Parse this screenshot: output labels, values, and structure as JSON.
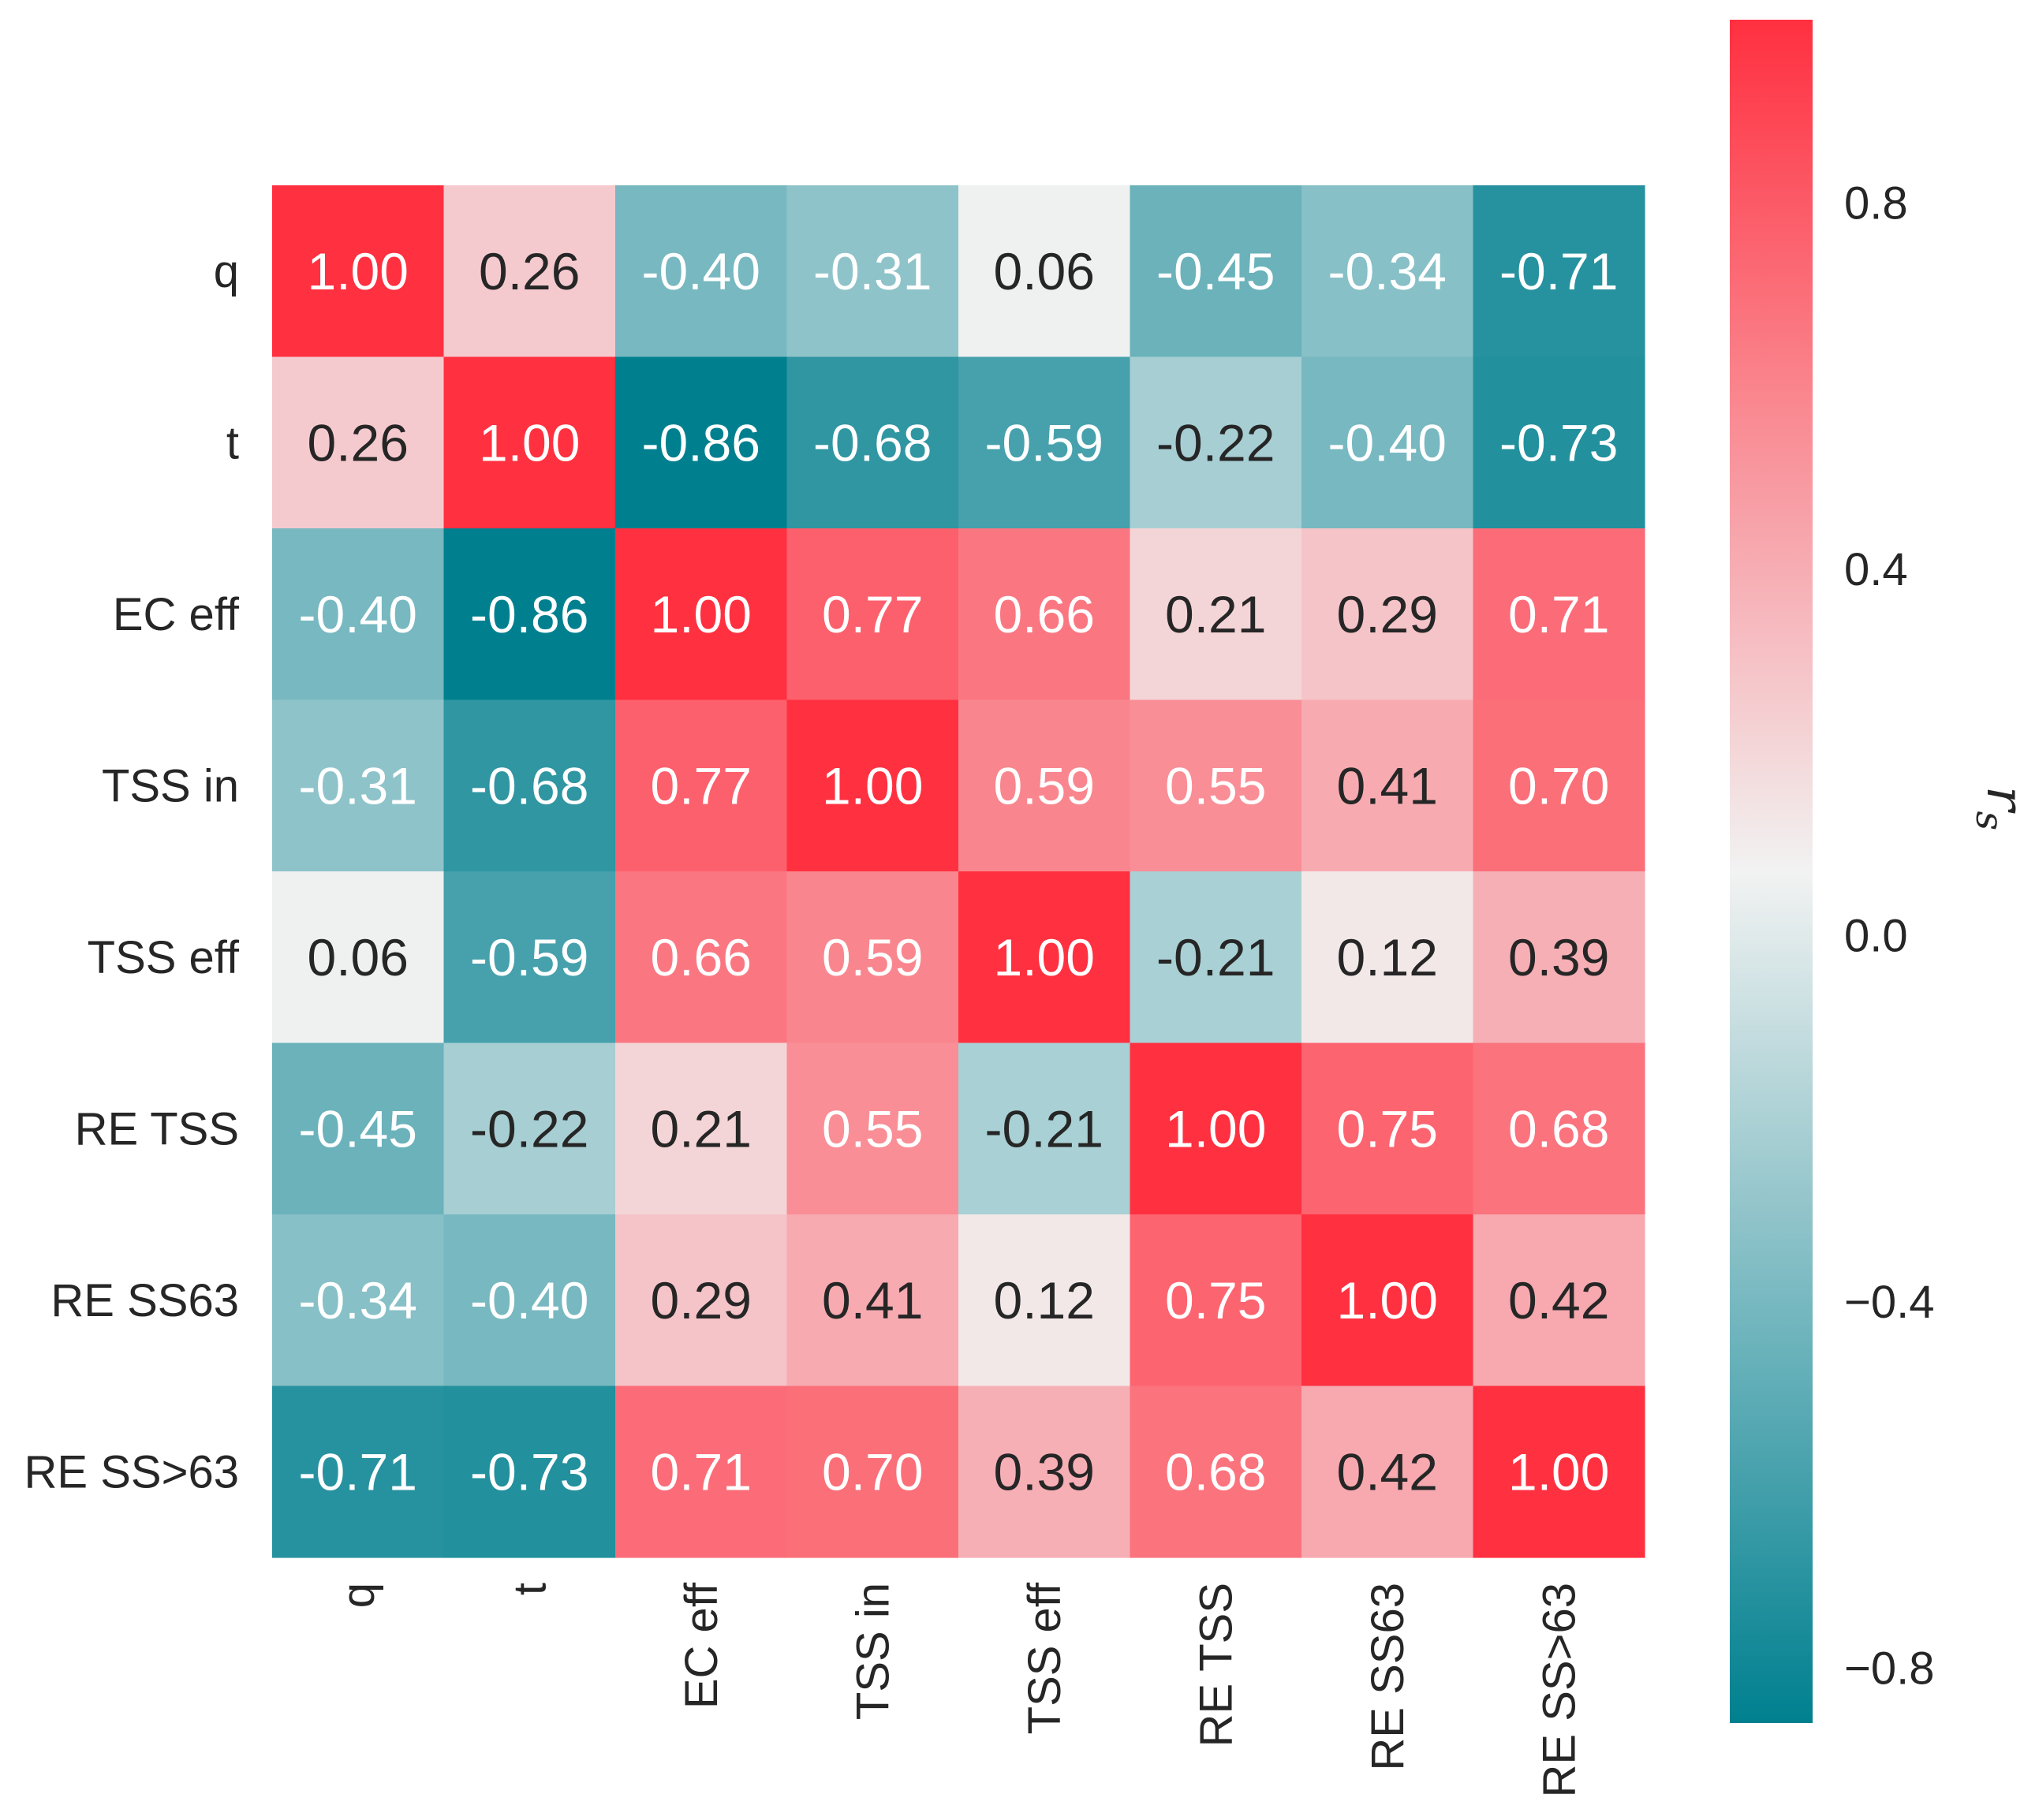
{
  "chart_data": {
    "type": "heatmap",
    "title": "",
    "row_labels": [
      "q",
      "t",
      "EC eff",
      "TSS in",
      "TSS eff",
      "RE TSS",
      "RE SS63",
      "RE SS>63"
    ],
    "col_labels": [
      "q",
      "t",
      "EC eff",
      "TSS in",
      "TSS eff",
      "RE TSS",
      "RE SS63",
      "RE SS>63"
    ],
    "values": [
      [
        1.0,
        0.26,
        -0.4,
        -0.31,
        0.06,
        -0.45,
        -0.34,
        -0.71
      ],
      [
        0.26,
        1.0,
        -0.86,
        -0.68,
        -0.59,
        -0.22,
        -0.4,
        -0.73
      ],
      [
        -0.4,
        -0.86,
        1.0,
        0.77,
        0.66,
        0.21,
        0.29,
        0.71
      ],
      [
        -0.31,
        -0.68,
        0.77,
        1.0,
        0.59,
        0.55,
        0.41,
        0.7
      ],
      [
        0.06,
        -0.59,
        0.66,
        0.59,
        1.0,
        -0.21,
        0.12,
        0.39
      ],
      [
        -0.45,
        -0.22,
        0.21,
        0.55,
        -0.21,
        1.0,
        0.75,
        0.68
      ],
      [
        -0.34,
        -0.4,
        0.29,
        0.41,
        0.12,
        0.75,
        1.0,
        0.42
      ],
      [
        -0.71,
        -0.73,
        0.71,
        0.7,
        0.39,
        0.68,
        0.42,
        1.0
      ]
    ],
    "value_format": "0.00",
    "colorbar": {
      "label": "r_s",
      "label_display": "r",
      "label_subscript": "s",
      "range": [
        -0.86,
        1.0
      ],
      "ticks": [
        0.8,
        0.4,
        0.0,
        -0.4,
        -0.8
      ],
      "tick_labels": [
        "0.8",
        "0.4",
        "0.0",
        "−0.4",
        "−0.8"
      ],
      "color_negative": "#00808f",
      "color_center": "#f2f2f2",
      "color_positive": "#ff3040"
    },
    "grid": false
  }
}
